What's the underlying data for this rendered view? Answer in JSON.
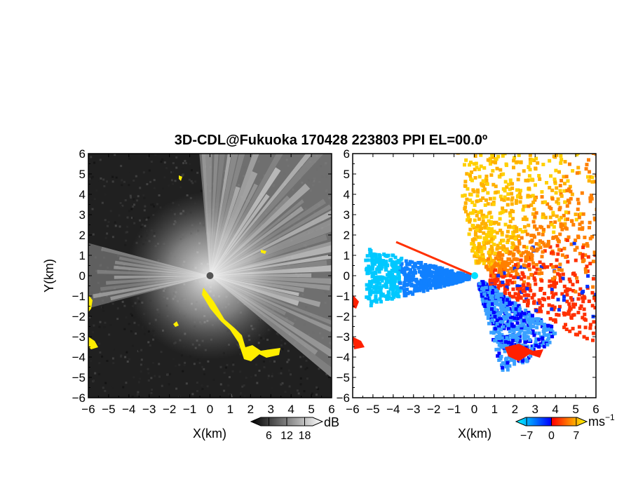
{
  "chart_data": {
    "title": "3D-CDL@Fukuoka 170428 223803 PPI EL=00.0º",
    "panels": [
      {
        "type": "heatmap",
        "quantity": "reflectivity",
        "xlabel": "X(km)",
        "ylabel": "Y(km)",
        "xlim": [
          -6,
          6
        ],
        "ylim": [
          -6,
          6
        ],
        "xticks": [
          "-6",
          "-5",
          "-4",
          "-3",
          "-2",
          "-1",
          "0",
          "1",
          "2",
          "3",
          "4",
          "5",
          "6"
        ],
        "yticks": [
          "6",
          "5",
          "4",
          "3",
          "2",
          "1",
          "0",
          "-1",
          "-2",
          "-3",
          "-4",
          "-5",
          "-6"
        ],
        "colormap": "grayscale",
        "highlight_color": "#ffee00",
        "colorbar": {
          "unit": "dB",
          "ticks": [
            "6",
            "12",
            "18"
          ],
          "range": [
            0,
            24
          ]
        }
      },
      {
        "type": "heatmap",
        "quantity": "doppler velocity",
        "xlabel": "X(km)",
        "ylabel": "",
        "xlim": [
          -6,
          6
        ],
        "ylim": [
          -6,
          6
        ],
        "xticks": [
          "-6",
          "-5",
          "-4",
          "-3",
          "-2",
          "-1",
          "0",
          "1",
          "2",
          "3",
          "4",
          "5",
          "6"
        ],
        "yticks": [
          "6",
          "5",
          "4",
          "3",
          "2",
          "1",
          "0",
          "-1",
          "-2",
          "-3",
          "-4",
          "-5",
          "-6"
        ],
        "colormap": [
          "#00ffff",
          "#0080ff",
          "#0000ff",
          "#ff0000",
          "#ff8000",
          "#ffff00"
        ],
        "colorbar": {
          "unit": "ms",
          "unit_exponent": "−1",
          "ticks": [
            "−7",
            "0",
            "7"
          ],
          "range": [
            -10,
            10
          ]
        }
      }
    ]
  }
}
